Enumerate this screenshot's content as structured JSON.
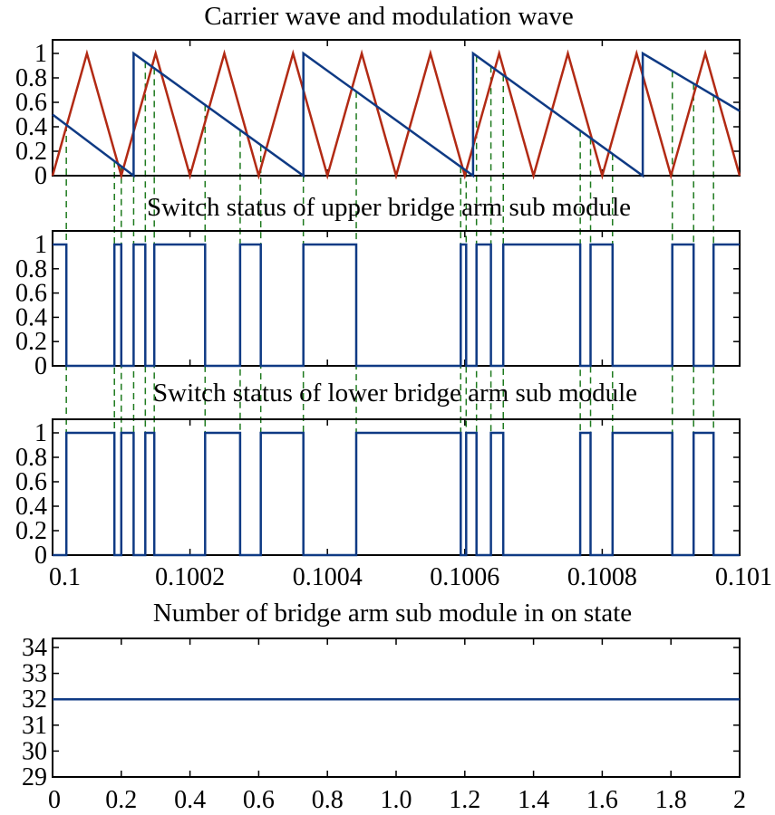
{
  "chart_data": [
    {
      "type": "line",
      "title": "Carrier wave and modulation wave",
      "xlim": [
        0.1,
        0.101
      ],
      "ylim": [
        0,
        1.05
      ],
      "yticks": [
        "0",
        "0.2",
        "0.4",
        "0.6",
        "0.8",
        "1"
      ],
      "series": [
        {
          "role": "carrier (triangular)",
          "color": "#b22a14",
          "x": [
            0.1,
            0.10005,
            0.1001,
            0.10015,
            0.1002,
            0.10025,
            0.1003,
            0.10035,
            0.1004,
            0.10045,
            0.1005,
            0.10055,
            0.1006,
            0.10065,
            0.1007,
            0.10075,
            0.1008,
            0.10085,
            0.1009,
            0.10095,
            0.101
          ],
          "values": [
            0,
            1,
            0,
            1,
            0,
            1,
            0,
            1,
            0,
            1,
            0,
            1,
            0,
            1,
            0,
            1,
            0,
            1,
            0,
            1,
            0
          ]
        },
        {
          "role": "modulation (sawtooth)",
          "color": "#0f3a84",
          "x": [
            0.1,
            0.100118,
            0.100118,
            0.100365,
            0.100365,
            0.100612,
            0.100612,
            0.100859,
            0.100859,
            0.101
          ],
          "values": [
            0.5,
            0,
            1,
            0,
            1,
            0,
            1,
            0,
            1,
            0.53
          ]
        }
      ]
    },
    {
      "type": "line",
      "title": "Switch status of upper bridge arm sub module",
      "xlim": [
        0.1,
        0.101
      ],
      "ylim": [
        0,
        1.05
      ],
      "yticks": [
        "0",
        "0.2",
        "0.4",
        "0.6",
        "0.8",
        "1"
      ],
      "color": "#0f3a84",
      "on_intervals": [
        [
          0.1,
          0.10002
        ],
        [
          0.10009,
          0.1001
        ],
        [
          0.100118,
          0.100135
        ],
        [
          0.100148,
          0.100222
        ],
        [
          0.100273,
          0.100303
        ],
        [
          0.100365,
          0.100442
        ],
        [
          0.100594,
          0.100602
        ],
        [
          0.100617,
          0.100638
        ],
        [
          0.100656,
          0.100768
        ],
        [
          0.100783,
          0.100815
        ],
        [
          0.100902,
          0.100933
        ],
        [
          0.100962,
          0.101
        ]
      ]
    },
    {
      "type": "line",
      "title": "Switch status of  lower bridge arm sub module",
      "xlim": [
        0.1,
        0.101
      ],
      "ylim": [
        0,
        1.05
      ],
      "yticks": [
        "0",
        "0.2",
        "0.4",
        "0.6",
        "0.8",
        "1"
      ],
      "xticks": [
        "0.1",
        "0.1002",
        "0.1004",
        "0.1006",
        "0.1008",
        "0.101"
      ],
      "xtick_values": [
        0.1,
        0.1002,
        0.1004,
        0.1006,
        0.1008,
        0.101
      ],
      "color": "#0f3a84",
      "on_intervals": [
        [
          0.10002,
          0.10009
        ],
        [
          0.1001,
          0.100118
        ],
        [
          0.100135,
          0.100148
        ],
        [
          0.100222,
          0.100273
        ],
        [
          0.100303,
          0.100365
        ],
        [
          0.100442,
          0.100594
        ],
        [
          0.100602,
          0.100617
        ],
        [
          0.100638,
          0.100656
        ],
        [
          0.100768,
          0.100783
        ],
        [
          0.100815,
          0.100902
        ],
        [
          0.100933,
          0.100962
        ]
      ]
    },
    {
      "type": "line",
      "title": "Number of bridge arm sub module  in on state",
      "xlim": [
        0,
        2
      ],
      "ylim": [
        29,
        34.5
      ],
      "yticks": [
        "29",
        "30",
        "31",
        "32",
        "33",
        "34"
      ],
      "xticks": [
        "0",
        "0.2",
        "0.4",
        "0.6",
        "0.8",
        "1.0",
        "1.2",
        "1.4",
        "1.6",
        "1.8",
        "2"
      ],
      "color": "#0f3a84",
      "x": [
        0,
        2
      ],
      "values": [
        32,
        32
      ]
    }
  ],
  "guide_color": "#1e7a1e"
}
